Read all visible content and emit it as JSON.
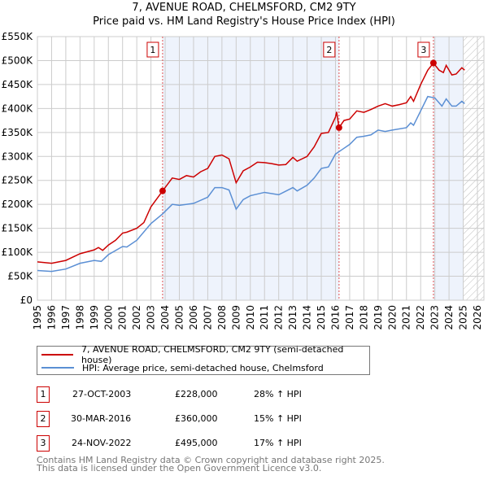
{
  "chart_data": {
    "type": "line",
    "title": "7, AVENUE ROAD, CHELMSFORD, CM2 9TY",
    "subtitle": "Price paid vs. HM Land Registry's House Price Index (HPI)",
    "xlim": [
      1995,
      2026
    ],
    "ylim": [
      0,
      550000
    ],
    "x_ticks": [
      "1995",
      "1996",
      "1997",
      "1998",
      "1999",
      "2000",
      "2001",
      "2002",
      "2003",
      "2004",
      "2005",
      "2006",
      "2007",
      "2008",
      "2009",
      "2010",
      "2011",
      "2012",
      "2013",
      "2014",
      "2015",
      "2016",
      "2017",
      "2018",
      "2019",
      "2020",
      "2021",
      "2022",
      "2023",
      "2024",
      "2025",
      "2026"
    ],
    "y_ticks": [
      "£0",
      "£50K",
      "£100K",
      "£150K",
      "£200K",
      "£250K",
      "£300K",
      "£350K",
      "£400K",
      "£450K",
      "£500K",
      "£550K"
    ],
    "grid": true,
    "series": [
      {
        "name": "7, AVENUE ROAD, CHELMSFORD, CM2 9TY (semi-detached house)",
        "color": "#cc0000",
        "x": [
          1995,
          1996,
          1996.5,
          1997,
          1998,
          1999,
          1999.3,
          1999.6,
          2000,
          2000.5,
          2001,
          2001.3,
          2002,
          2002.5,
          2003,
          2003.5,
          2003.82,
          2004.5,
          2005,
          2005.5,
          2006,
          2006.5,
          2007,
          2007.5,
          2008,
          2008.5,
          2009,
          2009.5,
          2010,
          2010.5,
          2011,
          2011.5,
          2012,
          2012.5,
          2013,
          2013.3,
          2014,
          2014.5,
          2015,
          2015.5,
          2016,
          2016.08,
          2016.25,
          2016.6,
          2017,
          2017.5,
          2018,
          2018.5,
          2019,
          2019.5,
          2020,
          2020.5,
          2021,
          2021.3,
          2021.5,
          2022,
          2022.5,
          2022.9,
          2023.3,
          2023.6,
          2023.8,
          2024.2,
          2024.5,
          2024.9,
          2025.1
        ],
        "y": [
          80000,
          77000,
          80000,
          83000,
          97000,
          105000,
          110000,
          104000,
          115000,
          125000,
          140000,
          142000,
          150000,
          162000,
          195000,
          215000,
          228000,
          255000,
          252000,
          260000,
          257000,
          268000,
          275000,
          300000,
          303000,
          295000,
          245000,
          270000,
          278000,
          288000,
          287000,
          285000,
          282000,
          283000,
          298000,
          290000,
          300000,
          320000,
          348000,
          350000,
          382000,
          393000,
          360000,
          375000,
          378000,
          395000,
          392000,
          398000,
          405000,
          410000,
          405000,
          408000,
          412000,
          425000,
          415000,
          450000,
          480000,
          495000,
          480000,
          475000,
          490000,
          470000,
          472000,
          485000,
          480000
        ]
      },
      {
        "name": "HPI: Average price, semi-detached house, Chelmsford",
        "color": "#5b8fd4",
        "x": [
          1995,
          1996,
          1997,
          1998,
          1999,
          1999.5,
          2000,
          2001,
          2001.3,
          2002,
          2003,
          2003.82,
          2004.5,
          2005,
          2006,
          2007,
          2007.5,
          2008,
          2008.5,
          2009,
          2009.5,
          2010,
          2011,
          2012,
          2013,
          2013.3,
          2014,
          2014.5,
          2015,
          2015.5,
          2016,
          2016.5,
          2017,
          2017.5,
          2018,
          2018.5,
          2019,
          2019.5,
          2020,
          2021,
          2021.3,
          2021.5,
          2022,
          2022.5,
          2023,
          2023.5,
          2023.8,
          2024.2,
          2024.5,
          2024.9,
          2025.1
        ],
        "y": [
          62000,
          60000,
          65000,
          77000,
          83000,
          81000,
          95000,
          112000,
          111000,
          125000,
          160000,
          180000,
          200000,
          198000,
          202000,
          215000,
          235000,
          235000,
          230000,
          190000,
          210000,
          218000,
          225000,
          220000,
          235000,
          228000,
          240000,
          255000,
          275000,
          278000,
          305000,
          315000,
          325000,
          340000,
          342000,
          345000,
          355000,
          352000,
          355000,
          360000,
          370000,
          365000,
          395000,
          425000,
          422000,
          405000,
          420000,
          405000,
          405000,
          415000,
          410000
        ]
      }
    ],
    "sales": [
      {
        "label": "1",
        "x": 2003.82,
        "y": 228000,
        "date": "27-OCT-2003",
        "price": "£228,000",
        "hpi": "28% ↑ HPI"
      },
      {
        "label": "2",
        "x": 2016.25,
        "y": 360000,
        "date": "30-MAR-2016",
        "price": "£360,000",
        "hpi": "15% ↑ HPI"
      },
      {
        "label": "3",
        "x": 2022.9,
        "y": 495000,
        "date": "24-NOV-2022",
        "price": "£495,000",
        "hpi": "17% ↑ HPI"
      }
    ],
    "data_end": 2025.0
  },
  "footer": [
    "Contains HM Land Registry data © Crown copyright and database right 2025.",
    "This data is licensed under the Open Government Licence v3.0."
  ]
}
